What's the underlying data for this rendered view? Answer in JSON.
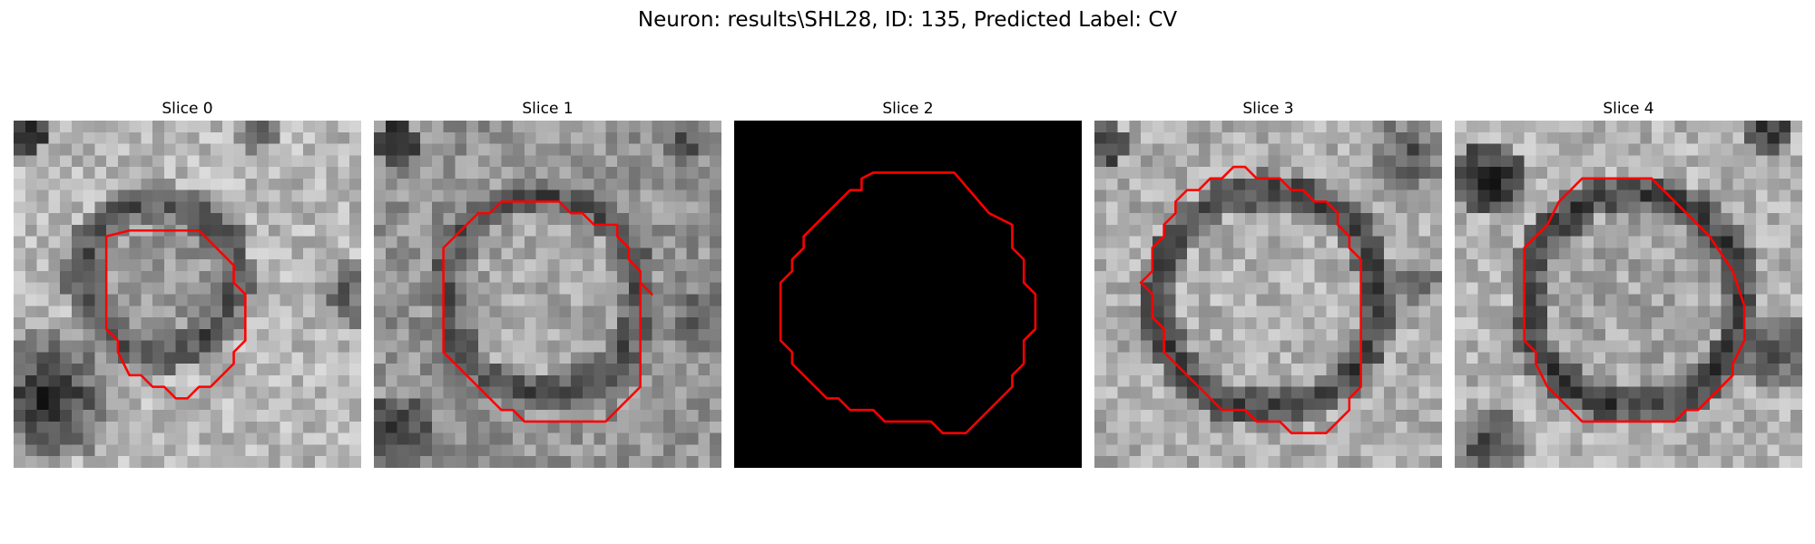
{
  "figure": {
    "title": "Neuron: results\\SHL28, ID: 135, Predicted Label: CV"
  },
  "panels": [
    {
      "title": "Slice 0",
      "image": "grayscale-microscopy-slice",
      "contour_color": "#ff0000"
    },
    {
      "title": "Slice 1",
      "image": "grayscale-microscopy-slice",
      "contour_color": "#ff0000"
    },
    {
      "title": "Slice 2",
      "image": "black-slice",
      "contour_color": "#ff0000"
    },
    {
      "title": "Slice 3",
      "image": "grayscale-microscopy-slice",
      "contour_color": "#ff0000"
    },
    {
      "title": "Slice 4",
      "image": "grayscale-microscopy-slice",
      "contour_color": "#ff0000"
    }
  ],
  "colors": {
    "contour": "#ff0000",
    "background": "#ffffff",
    "empty_slice": "#000000"
  }
}
